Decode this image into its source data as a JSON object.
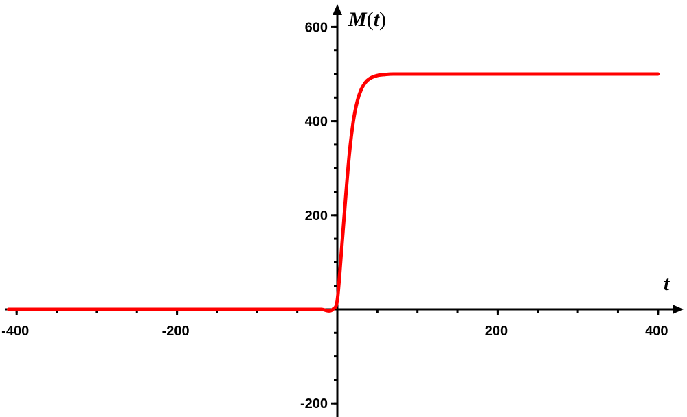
{
  "chart_data": {
    "type": "line",
    "title": "",
    "xlabel": "t",
    "ylabel": "M(t)",
    "ylabel_parts": {
      "name": "M",
      "open": "(",
      "var": "t",
      "close": ")"
    },
    "xlim": [
      -410,
      410
    ],
    "ylim": [
      -215,
      640
    ],
    "x_ticks": [
      -400,
      -200,
      200,
      400
    ],
    "y_ticks": [
      -200,
      200,
      400,
      600
    ],
    "x_tick_labels": [
      "-400",
      "-200",
      "200",
      "400"
    ],
    "y_tick_labels": [
      "-200",
      "200",
      "400",
      "600"
    ],
    "grid": false,
    "series": [
      {
        "color": "#ff0000",
        "x": [
          -410,
          -100,
          -20,
          -5,
          0,
          5,
          10,
          15,
          20,
          25,
          30,
          35,
          40,
          50,
          60,
          70,
          100,
          200,
          300,
          400
        ],
        "y": [
          0,
          0,
          0,
          1,
          20,
          120,
          230,
          330,
          400,
          443,
          468,
          482,
          490,
          497,
          499,
          500,
          500,
          500,
          500,
          500
        ]
      }
    ]
  }
}
